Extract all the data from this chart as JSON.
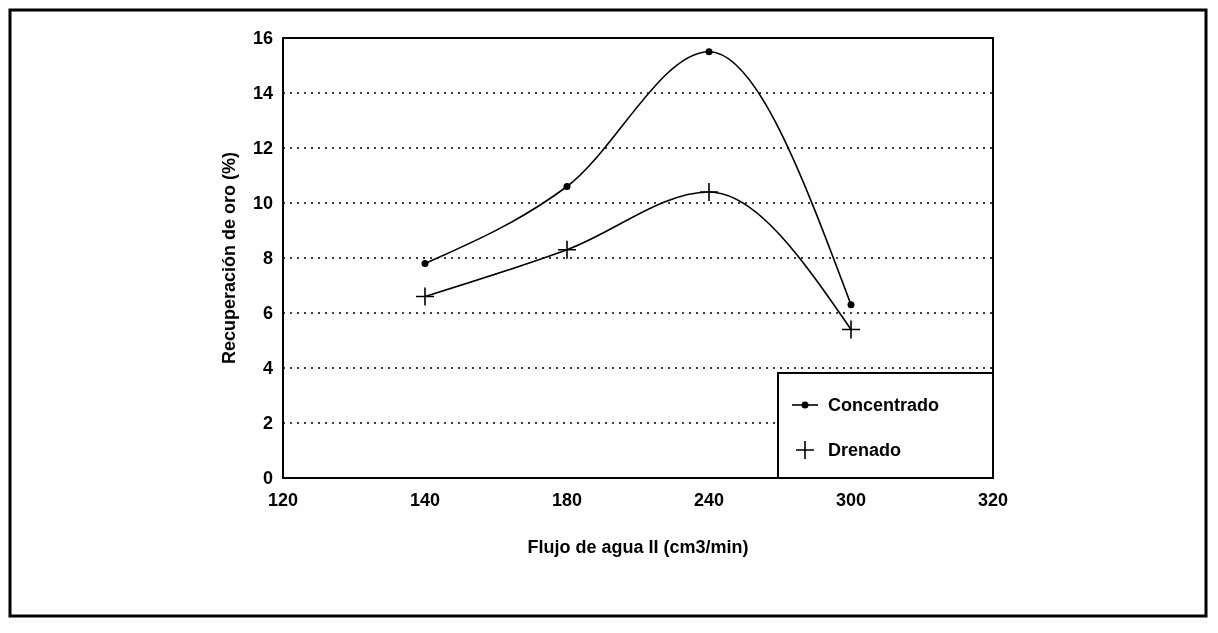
{
  "chart_data": {
    "type": "line",
    "xlabel": "Flujo de agua II (cm3/min)",
    "ylabel": "Recuperación de oro (%)",
    "categories": [
      "120",
      "140",
      "180",
      "240",
      "300",
      "320"
    ],
    "series": [
      {
        "name": "Concentrado",
        "color": "#000000",
        "marker": "circle",
        "values": [
          null,
          7.8,
          10.6,
          15.5,
          6.3,
          null
        ]
      },
      {
        "name": "Drenado",
        "color": "#000000",
        "marker": "cross",
        "values": [
          null,
          6.6,
          8.3,
          10.4,
          5.4,
          null
        ]
      }
    ],
    "ylim": [
      0,
      16
    ],
    "yticks": [
      0,
      2,
      4,
      6,
      8,
      10,
      12,
      14,
      16
    ],
    "grid": "y",
    "legend": "bottom right"
  }
}
